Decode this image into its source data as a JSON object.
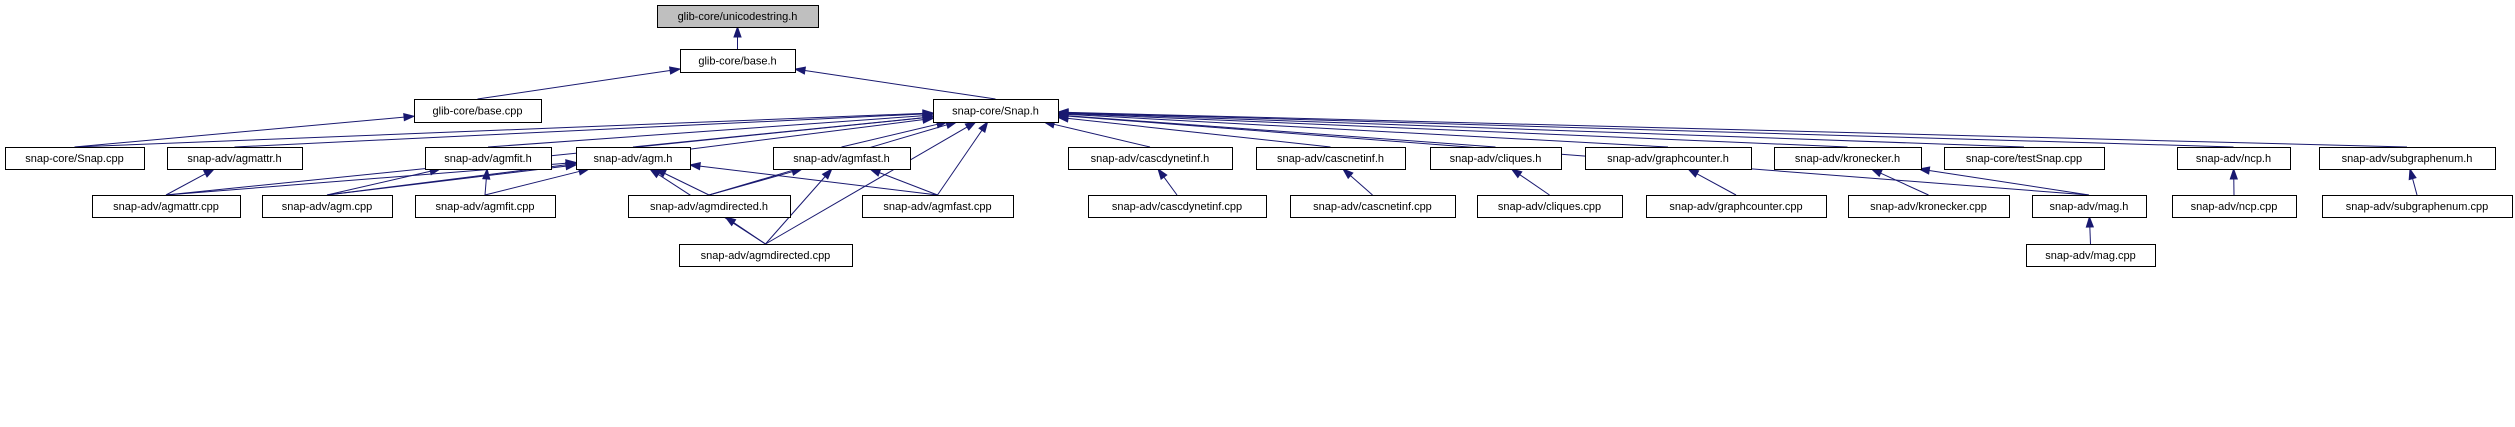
{
  "colors": {
    "edge": "#191970",
    "root_fill": "#bfbfbf",
    "node_fill": "#ffffff",
    "border": "#000000"
  },
  "root": "glib-core/unicodestring.h",
  "nodes": [
    "glib-core/unicodestring.h",
    "glib-core/base.h",
    "glib-core/base.cpp",
    "snap-core/Snap.h",
    "snap-core/Snap.cpp",
    "snap-adv/agmattr.h",
    "snap-adv/agmfit.h",
    "snap-adv/agm.h",
    "snap-adv/agmfast.h",
    "snap-adv/cascdynetinf.h",
    "snap-adv/cascnetinf.h",
    "snap-adv/cliques.h",
    "snap-adv/graphcounter.h",
    "snap-adv/kronecker.h",
    "snap-core/testSnap.cpp",
    "snap-adv/ncp.h",
    "snap-adv/subgraphenum.h",
    "snap-adv/agmattr.cpp",
    "snap-adv/agm.cpp",
    "snap-adv/agmfit.cpp",
    "snap-adv/agmdirected.h",
    "snap-adv/agmfast.cpp",
    "snap-adv/cascdynetinf.cpp",
    "snap-adv/cascnetinf.cpp",
    "snap-adv/cliques.cpp",
    "snap-adv/graphcounter.cpp",
    "snap-adv/kronecker.cpp",
    "snap-adv/mag.h",
    "snap-adv/ncp.cpp",
    "snap-adv/subgraphenum.cpp",
    "snap-adv/agmdirected.cpp",
    "snap-adv/mag.cpp"
  ],
  "edges": [
    [
      "glib-core/base.h",
      "glib-core/unicodestring.h"
    ],
    [
      "glib-core/base.cpp",
      "glib-core/base.h"
    ],
    [
      "snap-core/Snap.h",
      "glib-core/base.h"
    ],
    [
      "snap-core/Snap.cpp",
      "glib-core/base.cpp"
    ],
    [
      "snap-core/Snap.cpp",
      "snap-core/Snap.h"
    ],
    [
      "snap-adv/agmattr.h",
      "snap-core/Snap.h"
    ],
    [
      "snap-adv/agmfit.h",
      "snap-core/Snap.h"
    ],
    [
      "snap-adv/agm.h",
      "snap-core/Snap.h"
    ],
    [
      "snap-adv/agmfast.h",
      "snap-core/Snap.h"
    ],
    [
      "snap-adv/cascdynetinf.h",
      "snap-core/Snap.h"
    ],
    [
      "snap-adv/cascnetinf.h",
      "snap-core/Snap.h"
    ],
    [
      "snap-adv/cliques.h",
      "snap-core/Snap.h"
    ],
    [
      "snap-adv/graphcounter.h",
      "snap-core/Snap.h"
    ],
    [
      "snap-adv/kronecker.h",
      "snap-core/Snap.h"
    ],
    [
      "snap-core/testSnap.cpp",
      "snap-core/Snap.h"
    ],
    [
      "snap-adv/ncp.h",
      "snap-core/Snap.h"
    ],
    [
      "snap-adv/subgraphenum.h",
      "snap-core/Snap.h"
    ],
    [
      "snap-adv/agmattr.cpp",
      "snap-core/Snap.h"
    ],
    [
      "snap-adv/agm.cpp",
      "snap-core/Snap.h"
    ],
    [
      "snap-adv/agmdirected.h",
      "snap-core/Snap.h"
    ],
    [
      "snap-adv/agmfast.cpp",
      "snap-core/Snap.h"
    ],
    [
      "snap-adv/mag.h",
      "snap-core/Snap.h"
    ],
    [
      "snap-adv/agmdirected.cpp",
      "snap-core/Snap.h"
    ],
    [
      "snap-adv/agmattr.cpp",
      "snap-adv/agmattr.h"
    ],
    [
      "snap-adv/agmattr.cpp",
      "snap-adv/agm.h"
    ],
    [
      "snap-adv/agm.cpp",
      "snap-adv/agmfit.h"
    ],
    [
      "snap-adv/agm.cpp",
      "snap-adv/agm.h"
    ],
    [
      "snap-adv/agmfit.cpp",
      "snap-adv/agmfit.h"
    ],
    [
      "snap-adv/agmfit.cpp",
      "snap-adv/agm.h"
    ],
    [
      "snap-adv/agmdirected.h",
      "snap-adv/agm.h"
    ],
    [
      "snap-adv/agmdirected.h",
      "snap-adv/agmfast.h"
    ],
    [
      "snap-adv/agmfast.cpp",
      "snap-adv/agm.h"
    ],
    [
      "snap-adv/agmfast.cpp",
      "snap-adv/agmfast.h"
    ],
    [
      "snap-adv/agmdirected.cpp",
      "snap-adv/agm.h"
    ],
    [
      "snap-adv/agmdirected.cpp",
      "snap-adv/agmfast.h"
    ],
    [
      "snap-adv/agmdirected.cpp",
      "snap-adv/agmdirected.h"
    ],
    [
      "snap-adv/cascdynetinf.cpp",
      "snap-adv/cascdynetinf.h"
    ],
    [
      "snap-adv/cascnetinf.cpp",
      "snap-adv/cascnetinf.h"
    ],
    [
      "snap-adv/cliques.cpp",
      "snap-adv/cliques.h"
    ],
    [
      "snap-adv/graphcounter.cpp",
      "snap-adv/graphcounter.h"
    ],
    [
      "snap-adv/kronecker.cpp",
      "snap-adv/kronecker.h"
    ],
    [
      "snap-adv/mag.h",
      "snap-adv/kronecker.h"
    ],
    [
      "snap-adv/mag.cpp",
      "snap-adv/mag.h"
    ],
    [
      "snap-adv/ncp.cpp",
      "snap-adv/ncp.h"
    ],
    [
      "snap-adv/subgraphenum.cpp",
      "snap-adv/subgraphenum.h"
    ]
  ]
}
